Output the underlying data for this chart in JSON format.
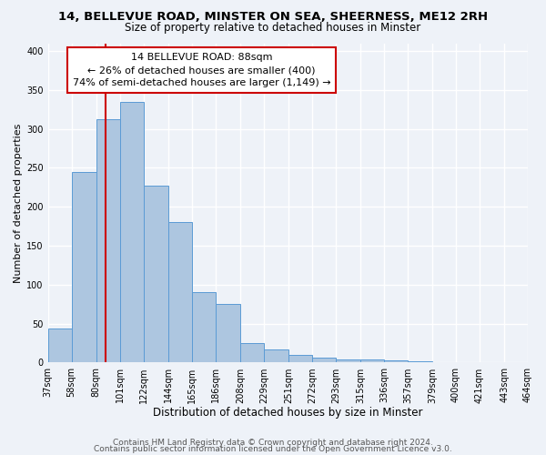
{
  "title1": "14, BELLEVUE ROAD, MINSTER ON SEA, SHEERNESS, ME12 2RH",
  "title2": "Size of property relative to detached houses in Minster",
  "xlabel": "Distribution of detached houses by size in Minster",
  "ylabel": "Number of detached properties",
  "bar_values": [
    44,
    245,
    312,
    335,
    227,
    180,
    90,
    75,
    25,
    17,
    10,
    6,
    4,
    4,
    3,
    2
  ],
  "bin_edges": [
    37,
    58,
    80,
    101,
    122,
    144,
    165,
    186,
    208,
    229,
    251,
    272,
    293,
    315,
    336,
    357,
    379,
    400,
    421,
    443,
    464
  ],
  "tick_labels": [
    "37sqm",
    "58sqm",
    "80sqm",
    "101sqm",
    "122sqm",
    "144sqm",
    "165sqm",
    "186sqm",
    "208sqm",
    "229sqm",
    "251sqm",
    "272sqm",
    "293sqm",
    "315sqm",
    "336sqm",
    "357sqm",
    "379sqm",
    "400sqm",
    "421sqm",
    "443sqm",
    "464sqm"
  ],
  "bar_color": "#adc6e0",
  "bar_edge_color": "#5b9bd5",
  "vline_x": 88,
  "vline_color": "#cc0000",
  "annotation_line1": "14 BELLEVUE ROAD: 88sqm",
  "annotation_line2": "← 26% of detached houses are smaller (400)",
  "annotation_line3": "74% of semi-detached houses are larger (1,149) →",
  "annotation_box_color": "#ffffff",
  "annotation_box_edge": "#cc0000",
  "ylim": [
    0,
    410
  ],
  "yticks": [
    0,
    50,
    100,
    150,
    200,
    250,
    300,
    350,
    400
  ],
  "footer1": "Contains HM Land Registry data © Crown copyright and database right 2024.",
  "footer2": "Contains public sector information licensed under the Open Government Licence v3.0.",
  "background_color": "#eef2f8",
  "grid_color": "#ffffff",
  "title1_fontsize": 9.5,
  "title2_fontsize": 8.5,
  "xlabel_fontsize": 8.5,
  "ylabel_fontsize": 8,
  "tick_fontsize": 7,
  "footer_fontsize": 6.5,
  "annotation_fontsize": 8
}
